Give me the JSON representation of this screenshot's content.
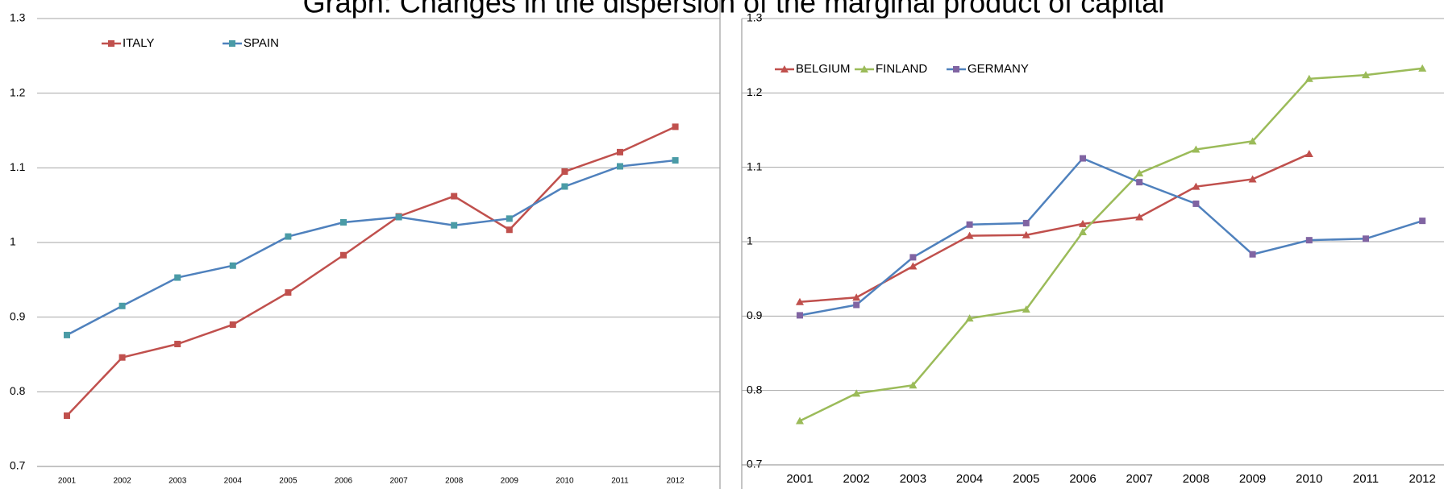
{
  "title": "Graph: Changes in the dispersion of the marginal product of capital",
  "chart_data": [
    {
      "type": "line",
      "categories": [
        "2001",
        "2002",
        "2003",
        "2004",
        "2005",
        "2006",
        "2007",
        "2008",
        "2009",
        "2010",
        "2011",
        "2012"
      ],
      "ylim": [
        0.7,
        1.3
      ],
      "yticks": [
        0.7,
        0.8,
        0.9,
        1,
        1.1,
        1.2,
        1.3
      ],
      "grid": true,
      "series": [
        {
          "name": "ITALY",
          "color": "#c0504d",
          "marker": "square",
          "marker_color": "#c0504d",
          "values": [
            0.768,
            0.846,
            0.864,
            0.89,
            0.933,
            0.983,
            1.035,
            1.062,
            1.017,
            1.095,
            1.121,
            1.155
          ]
        },
        {
          "name": "SPAIN",
          "color": "#4f81bd",
          "marker": "square",
          "marker_color": "#4a9ba6",
          "values": [
            0.876,
            0.915,
            0.953,
            0.969,
            1.008,
            1.027,
            1.034,
            1.023,
            1.032,
            1.075,
            1.102,
            1.11
          ]
        }
      ]
    },
    {
      "type": "line",
      "categories": [
        "2001",
        "2002",
        "2003",
        "2004",
        "2005",
        "2006",
        "2007",
        "2008",
        "2009",
        "2010",
        "2011",
        "2012"
      ],
      "ylim": [
        0.7,
        1.3
      ],
      "yticks": [
        0.7,
        0.8,
        0.9,
        1,
        1.1,
        1.2,
        1.3
      ],
      "grid": true,
      "series": [
        {
          "name": "BELGIUM",
          "color": "#c0504d",
          "marker": "triangle",
          "marker_color": "#c0504d",
          "values": [
            0.919,
            0.925,
            0.967,
            1.008,
            1.009,
            1.024,
            1.033,
            1.074,
            1.084,
            1.118,
            null,
            null
          ]
        },
        {
          "name": "FINLAND",
          "color": "#9bbb59",
          "marker": "triangle",
          "marker_color": "#9bbb59",
          "values": [
            0.759,
            0.796,
            0.807,
            0.897,
            0.909,
            1.013,
            1.092,
            1.124,
            1.135,
            1.219,
            1.224,
            1.233
          ]
        },
        {
          "name": "GERMANY",
          "color": "#4f81bd",
          "marker": "square",
          "marker_color": "#8064a2",
          "values": [
            0.901,
            0.915,
            0.979,
            1.023,
            1.025,
            1.112,
            1.08,
            1.051,
            0.983,
            1.002,
            1.004,
            1.028
          ]
        }
      ]
    }
  ]
}
